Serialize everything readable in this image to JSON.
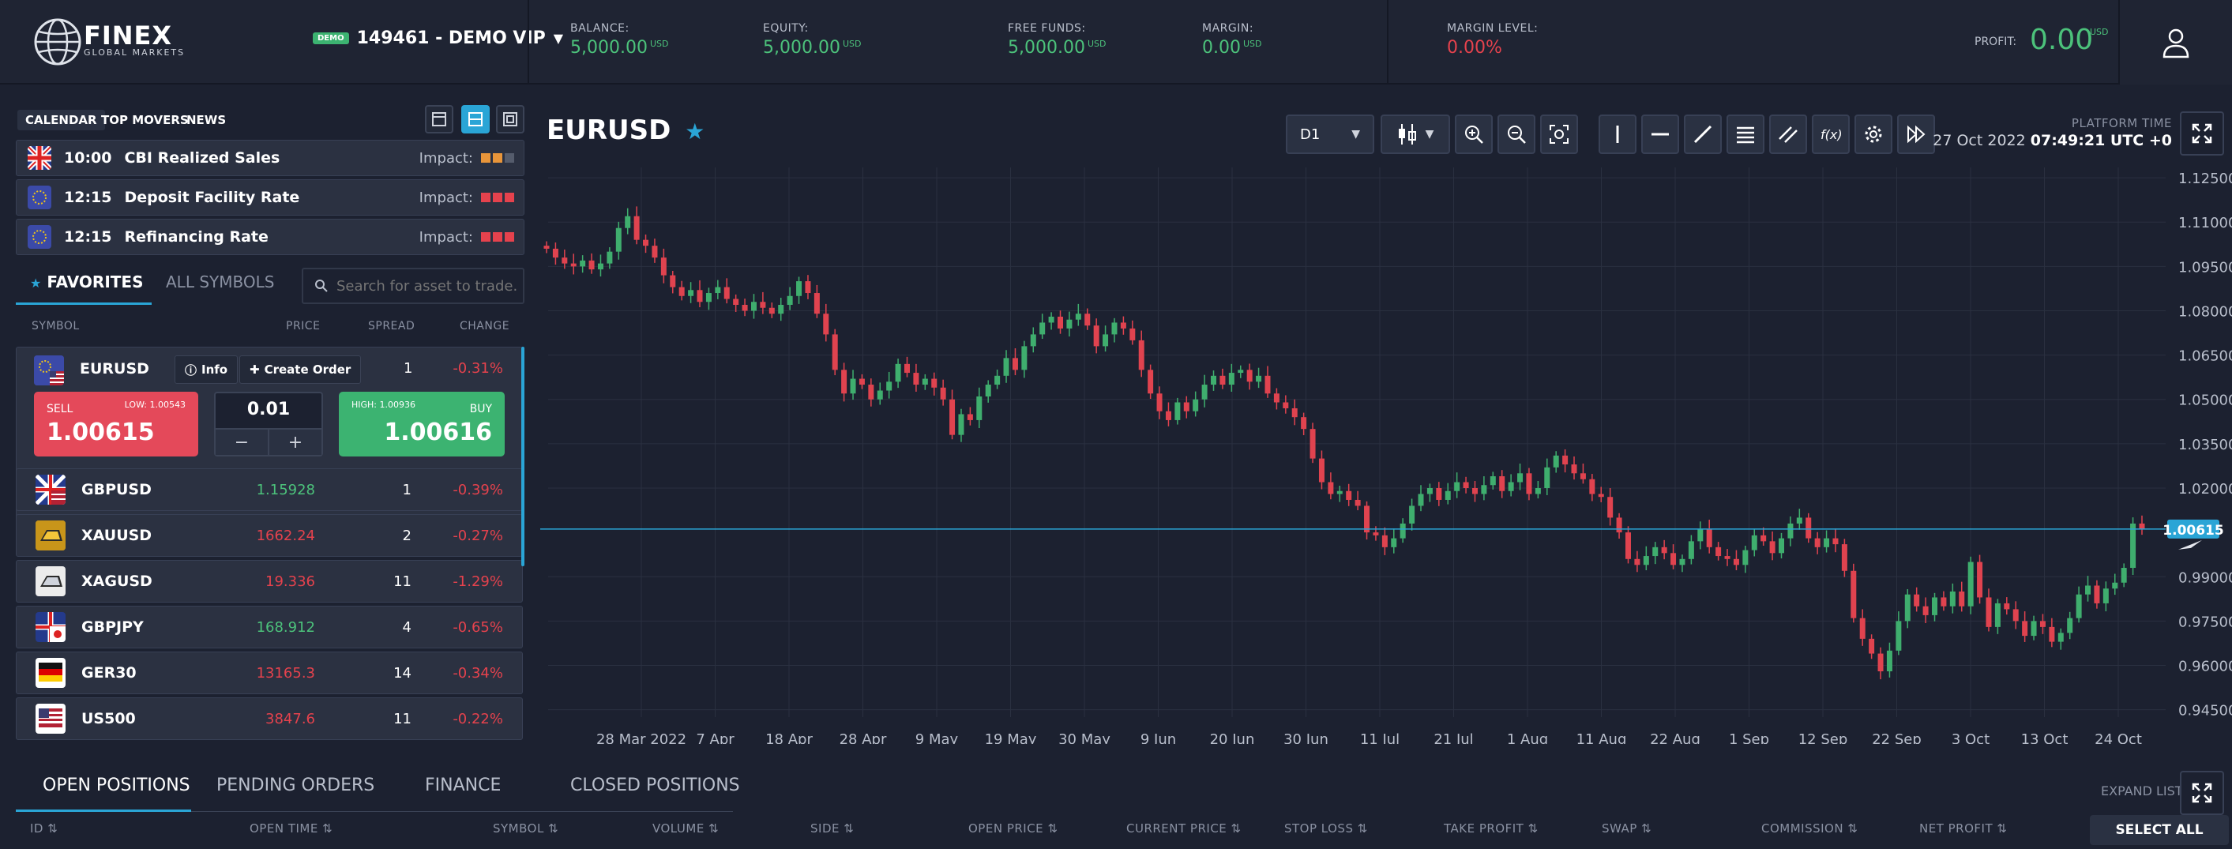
{
  "app": {
    "brand": "FINEX",
    "brand_sub": "GLOBAL MARKETS"
  },
  "account": {
    "badge": "DEMO",
    "label": "149461 - DEMO VIP"
  },
  "stats": [
    {
      "label": "BALANCE:",
      "value": "5,000.00",
      "unit": "USD",
      "color": "#4cc27b"
    },
    {
      "label": "EQUITY:",
      "value": "5,000.00",
      "unit": "USD",
      "color": "#4cc27b"
    },
    {
      "label": "FREE FUNDS:",
      "value": "5,000.00",
      "unit": "USD",
      "color": "#4cc27b"
    },
    {
      "label": "MARGIN:",
      "value": "0.00",
      "unit": "USD",
      "color": "#4cc27b"
    },
    {
      "label": "MARGIN LEVEL:",
      "value": "0.00%",
      "unit": "",
      "color": "#e5424d"
    }
  ],
  "profit": {
    "label": "PROFIT:",
    "value": "0.00",
    "unit": "USD"
  },
  "news_tabs": [
    "CALENDAR",
    "TOP MOVERS",
    "NEWS"
  ],
  "news": [
    {
      "flag": "uk-flag-icon",
      "time": "10:00",
      "title": "CBI Realized Sales",
      "impact_label": "Impact:",
      "impact_level": 2,
      "impact_color": "#e8953a"
    },
    {
      "flag": "eu-flag-icon",
      "time": "12:15",
      "title": "Deposit Facility Rate",
      "impact_label": "Impact:",
      "impact_level": 3,
      "impact_color": "#e5424d"
    },
    {
      "flag": "eu-flag-icon",
      "time": "12:15",
      "title": "Refinancing Rate",
      "impact_label": "Impact:",
      "impact_level": 3,
      "impact_color": "#e5424d"
    }
  ],
  "symbol_tabs": {
    "favorites": "FAVORITES",
    "all": "ALL SYMBOLS"
  },
  "search": {
    "placeholder": "Search for asset to trade..."
  },
  "table_headers": {
    "symbol": "SYMBOL",
    "price": "PRICE",
    "spread": "SPREAD",
    "change": "CHANGE"
  },
  "selected_symbol": {
    "name": "EURUSD",
    "info": "Info",
    "create_order": "Create Order",
    "spread": "1",
    "change": "-0.31%",
    "sell_label": "SELL",
    "sell_low": "LOW: 1.00543",
    "sell_price": "1.00615",
    "buy_label": "BUY",
    "buy_high": "HIGH: 1.00936",
    "buy_price": "1.00616",
    "volume": "0.01",
    "minus": "−",
    "plus": "+"
  },
  "symbols": [
    {
      "name": "GBPUSD",
      "price": "1.15928",
      "price_color": "#4cc27b",
      "spread": "1",
      "change": "-0.39%",
      "icon": "gbpusd-flag-icon"
    },
    {
      "name": "XAUUSD",
      "price": "1662.24",
      "price_color": "#e5424d",
      "spread": "2",
      "change": "-0.27%",
      "icon": "gold-bar-icon"
    },
    {
      "name": "XAGUSD",
      "price": "19.336",
      "price_color": "#e5424d",
      "spread": "11",
      "change": "-1.29%",
      "icon": "silver-bar-icon"
    },
    {
      "name": "GBPJPY",
      "price": "168.912",
      "price_color": "#4cc27b",
      "spread": "4",
      "change": "-0.65%",
      "icon": "gbpjpy-flag-icon"
    },
    {
      "name": "GER30",
      "price": "13165.3",
      "price_color": "#e5424d",
      "spread": "14",
      "change": "-0.34%",
      "icon": "germany-flag-icon"
    },
    {
      "name": "US500",
      "price": "3847.6",
      "price_color": "#e5424d",
      "spread": "11",
      "change": "-0.22%",
      "icon": "us-flag-icon"
    }
  ],
  "chart_toolbar": {
    "timeframe": "D1"
  },
  "platform_time": {
    "label": "PLATFORM TIME",
    "date": "27 Oct 2022",
    "time": "07:49:21 UTC +0"
  },
  "chart_data": {
    "type": "candlestick",
    "title": "EURUSD",
    "y_ticks": [
      "1.12500",
      "1.11000",
      "1.09500",
      "1.08000",
      "1.06500",
      "1.05000",
      "1.03500",
      "1.02000",
      "0.99000",
      "0.97500",
      "0.96000",
      "0.94500"
    ],
    "ylim": [
      0.9425,
      1.1285
    ],
    "x_ticks": [
      "28 Mar 2022",
      "7 Apr",
      "18 Apr",
      "28 Apr",
      "9 May",
      "19 May",
      "30 May",
      "9 Jun",
      "20 Jun",
      "30 Jun",
      "11 Jul",
      "21 Jul",
      "1 Aug",
      "11 Aug",
      "22 Aug",
      "1 Sep",
      "12 Sep",
      "22 Sep",
      "3 Oct",
      "13 Oct",
      "24 Oct"
    ],
    "current_price": "1.00615",
    "current_value": 1.00615,
    "up_color": "#3fae6e",
    "down_color": "#e0434f",
    "closes": [
      1.101,
      1.098,
      1.096,
      1.095,
      1.097,
      1.094,
      1.096,
      1.1,
      1.108,
      1.112,
      1.104,
      1.102,
      1.098,
      1.092,
      1.088,
      1.085,
      1.087,
      1.083,
      1.086,
      1.088,
      1.084,
      1.082,
      1.08,
      1.083,
      1.081,
      1.079,
      1.082,
      1.085,
      1.09,
      1.086,
      1.079,
      1.072,
      1.06,
      1.052,
      1.057,
      1.055,
      1.05,
      1.053,
      1.056,
      1.062,
      1.059,
      1.055,
      1.057,
      1.054,
      1.05,
      1.038,
      1.045,
      1.043,
      1.051,
      1.055,
      1.058,
      1.064,
      1.06,
      1.068,
      1.072,
      1.076,
      1.078,
      1.074,
      1.077,
      1.079,
      1.075,
      1.068,
      1.072,
      1.076,
      1.074,
      1.07,
      1.06,
      1.052,
      1.046,
      1.043,
      1.049,
      1.046,
      1.05,
      1.055,
      1.058,
      1.055,
      1.059,
      1.06,
      1.056,
      1.058,
      1.052,
      1.049,
      1.047,
      1.044,
      1.04,
      1.03,
      1.022,
      1.018,
      1.019,
      1.016,
      1.014,
      1.005,
      1.004,
      1.0,
      1.003,
      1.008,
      1.014,
      1.018,
      1.02,
      1.016,
      1.019,
      1.022,
      1.02,
      1.018,
      1.021,
      1.024,
      1.019,
      1.022,
      1.025,
      1.018,
      1.02,
      1.027,
      1.031,
      1.028,
      1.025,
      1.023,
      1.018,
      1.017,
      1.01,
      1.005,
      0.996,
      0.994,
      0.997,
      1.0,
      0.998,
      0.994,
      0.996,
      1.002,
      1.006,
      1.0,
      0.997,
      0.996,
      0.994,
      0.999,
      1.004,
      1.002,
      0.998,
      1.003,
      1.008,
      1.01,
      1.003,
      1.0,
      1.003,
      1.001,
      0.992,
      0.976,
      0.969,
      0.964,
      0.958,
      0.965,
      0.975,
      0.984,
      0.98,
      0.977,
      0.983,
      0.98,
      0.985,
      0.98,
      0.995,
      0.983,
      0.973,
      0.981,
      0.979,
      0.975,
      0.97,
      0.975,
      0.973,
      0.968,
      0.971,
      0.976,
      0.984,
      0.987,
      0.981,
      0.986,
      0.988,
      0.993,
      1.008,
      1.006
    ]
  },
  "bottom": {
    "tabs": [
      "OPEN POSITIONS",
      "PENDING ORDERS",
      "FINANCE",
      "CLOSED POSITIONS"
    ],
    "expand_label": "EXPAND LIST",
    "select_all": "SELECT ALL",
    "columns": [
      "ID",
      "OPEN TIME",
      "SYMBOL",
      "VOLUME",
      "SIDE",
      "OPEN PRICE",
      "CURRENT PRICE",
      "STOP LOSS",
      "TAKE PROFIT",
      "SWAP",
      "COMMISSION",
      "NET PROFIT"
    ]
  }
}
